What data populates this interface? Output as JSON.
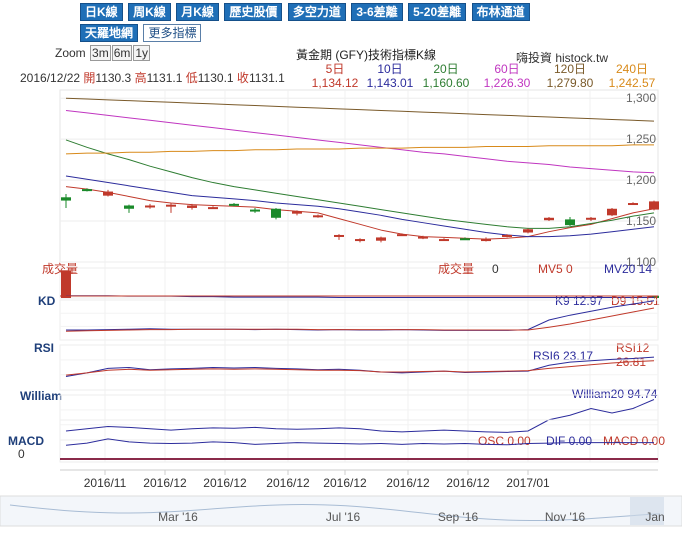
{
  "tabs": [
    "日K線",
    "周K線",
    "月K線",
    "歷史股價",
    "多空力道",
    "3-6差離",
    "5-20差離",
    "布林通道",
    "天羅地網",
    "更多指標"
  ],
  "zoom": {
    "label": "Zoom",
    "options": [
      "3m",
      "6m",
      "1y"
    ]
  },
  "title": "黃金期 (GFY)技術指標K線",
  "site": "嗨投資 histock.tw",
  "ohlc": {
    "date": "2016/12/22",
    "open_label": "開",
    "open": "1130.3",
    "high_label": "高",
    "high": "1131.1",
    "low_label": "低",
    "low": "1130.1",
    "close_label": "收",
    "close": "1131.1"
  },
  "ma": [
    {
      "name": "5日",
      "value": "1,134.12",
      "color": "#c0392b"
    },
    {
      "name": "10日",
      "value": "1,143.01",
      "color": "#2c2c9c"
    },
    {
      "name": "20日",
      "value": "1,160.60",
      "color": "#2e7d32"
    },
    {
      "name": "60日",
      "value": "1,226.30",
      "color": "#c036c0"
    },
    {
      "name": "120日",
      "value": "1,279.80",
      "color": "#7a5a2a"
    },
    {
      "name": "240日",
      "value": "1,242.57",
      "color": "#d88a1a"
    }
  ],
  "volume": {
    "label": "成交量",
    "label2": "成交量",
    "value": "0",
    "mv5_label": "MV5",
    "mv5": "0",
    "mv20_label": "MV20",
    "mv20": "14"
  },
  "kd": {
    "label": "KD",
    "k_label": "K9",
    "k": "12.97",
    "d_label": "D9",
    "d": "15.51"
  },
  "rsi": {
    "label": "RSI",
    "rsi6_label": "RSI6",
    "rsi6": "23.17",
    "rsi12_label": "RSI12",
    "rsi12": "26.81"
  },
  "william": {
    "label": "William",
    "w_label": "William20",
    "w": "94.74"
  },
  "macd": {
    "label": "MACD",
    "zero": "0",
    "osc_label": "OSC",
    "osc": "0.00",
    "dif_label": "DIF",
    "dif": "0.00",
    "macd_label": "MACD",
    "macd": "0.00"
  },
  "nav_labels": [
    "Mar '16",
    "Jul '16",
    "Sep '16",
    "Nov '16",
    "Jan"
  ],
  "colors": {
    "up": "#c0392b",
    "down": "#1a8a2a",
    "tab": "#1f6fb7"
  },
  "chart_data": {
    "type": "candlestick",
    "x_ticks": [
      "2016/11",
      "2016/12",
      "2016/12",
      "2016/12",
      "2016/12",
      "2016/12",
      "2016/12",
      "2017/01"
    ],
    "y_ticks": [
      1100,
      1150,
      1200,
      1250,
      1300
    ],
    "ylim": [
      1100,
      1310
    ],
    "candles": [
      {
        "o": 1179,
        "c": 1175,
        "h": 1183,
        "l": 1166
      },
      {
        "o": 1189,
        "c": 1187,
        "h": 1190,
        "l": 1186
      },
      {
        "o": 1181,
        "c": 1186,
        "h": 1188,
        "l": 1180
      },
      {
        "o": 1169,
        "c": 1165,
        "h": 1170,
        "l": 1160
      },
      {
        "o": 1167,
        "c": 1169,
        "h": 1171,
        "l": 1165
      },
      {
        "o": 1168,
        "c": 1170,
        "h": 1172,
        "l": 1160
      },
      {
        "o": 1166,
        "c": 1169,
        "h": 1171,
        "l": 1164
      },
      {
        "o": 1167,
        "c": 1167,
        "h": 1168,
        "l": 1165
      },
      {
        "o": 1171,
        "c": 1169,
        "h": 1172,
        "l": 1168
      },
      {
        "o": 1164,
        "c": 1162,
        "h": 1166,
        "l": 1160
      },
      {
        "o": 1165,
        "c": 1154,
        "h": 1166,
        "l": 1152
      },
      {
        "o": 1159,
        "c": 1162,
        "h": 1163,
        "l": 1157
      },
      {
        "o": 1155,
        "c": 1157,
        "h": 1158,
        "l": 1154
      },
      {
        "o": 1133,
        "c": 1133,
        "h": 1134,
        "l": 1127
      },
      {
        "o": 1126,
        "c": 1128,
        "h": 1129,
        "l": 1124
      },
      {
        "o": 1126,
        "c": 1130,
        "h": 1131,
        "l": 1124
      },
      {
        "o": 1133,
        "c": 1134,
        "h": 1135,
        "l": 1132
      },
      {
        "o": 1129,
        "c": 1131,
        "h": 1132,
        "l": 1128
      },
      {
        "o": 1128,
        "c": 1128,
        "h": 1129,
        "l": 1126
      },
      {
        "o": 1129,
        "c": 1128,
        "h": 1130,
        "l": 1127
      },
      {
        "o": 1126,
        "c": 1128,
        "h": 1130,
        "l": 1125
      },
      {
        "o": 1131,
        "c": 1133,
        "h": 1134,
        "l": 1130
      },
      {
        "o": 1136,
        "c": 1140,
        "h": 1141,
        "l": 1135
      },
      {
        "o": 1151,
        "c": 1154,
        "h": 1155,
        "l": 1150
      },
      {
        "o": 1152,
        "c": 1145,
        "h": 1155,
        "l": 1144
      },
      {
        "o": 1152,
        "c": 1154,
        "h": 1155,
        "l": 1150
      },
      {
        "o": 1157,
        "c": 1165,
        "h": 1166,
        "l": 1156
      },
      {
        "o": 1171,
        "c": 1172,
        "h": 1173,
        "l": 1170
      },
      {
        "o": 1164,
        "c": 1174,
        "h": 1175,
        "l": 1163
      }
    ],
    "series": [
      {
        "name": "5日",
        "color": "#c0392b",
        "values": [
          1192,
          1189,
          1185,
          1180,
          1175,
          1172,
          1170,
          1169,
          1168,
          1167,
          1164,
          1162,
          1160,
          1153,
          1146,
          1139,
          1134,
          1131,
          1130,
          1129,
          1128,
          1129,
          1131,
          1137,
          1142,
          1146,
          1153,
          1160,
          1165
        ]
      },
      {
        "name": "10日",
        "color": "#2c2c9c",
        "values": [
          1205,
          1201,
          1197,
          1193,
          1189,
          1185,
          1181,
          1179,
          1177,
          1175,
          1172,
          1170,
          1168,
          1165,
          1161,
          1157,
          1152,
          1148,
          1144,
          1140,
          1136,
          1133,
          1131,
          1131,
          1132,
          1134,
          1137,
          1140,
          1143
        ]
      },
      {
        "name": "20日",
        "color": "#2e7d32",
        "values": [
          1249,
          1240,
          1232,
          1225,
          1217,
          1210,
          1203,
          1197,
          1192,
          1188,
          1184,
          1180,
          1176,
          1172,
          1168,
          1164,
          1160,
          1156,
          1152,
          1149,
          1146,
          1143,
          1141,
          1141,
          1143,
          1147,
          1151,
          1156,
          1160
        ]
      },
      {
        "name": "60日",
        "color": "#c036c0",
        "values": [
          1285,
          1282,
          1279,
          1276,
          1273,
          1270,
          1267,
          1264,
          1261,
          1258,
          1255,
          1252,
          1249,
          1246,
          1243,
          1240,
          1237,
          1234,
          1232,
          1229,
          1226,
          1223,
          1221,
          1219,
          1216,
          1214,
          1212,
          1210,
          1209
        ]
      },
      {
        "name": "120日",
        "color": "#7a5a2a",
        "values": [
          1300,
          1299,
          1298,
          1297,
          1296,
          1295,
          1294,
          1293,
          1292,
          1291,
          1290,
          1289,
          1288,
          1287,
          1286,
          1285,
          1284,
          1283,
          1282,
          1281,
          1280,
          1279,
          1278,
          1277,
          1276,
          1275,
          1274,
          1273,
          1272
        ]
      },
      {
        "name": "240日",
        "color": "#d88a1a",
        "values": [
          1232,
          1233,
          1233,
          1234,
          1234,
          1235,
          1235,
          1236,
          1236,
          1237,
          1237,
          1238,
          1238,
          1238,
          1239,
          1239,
          1239,
          1240,
          1240,
          1240,
          1241,
          1241,
          1241,
          1242,
          1242,
          1242,
          1242,
          1243,
          1243
        ]
      }
    ],
    "volume": [
      120,
      0,
      0,
      0,
      0,
      0,
      0,
      0,
      0,
      0,
      0,
      0,
      0,
      0,
      0,
      0,
      0,
      0,
      0,
      0,
      0,
      0,
      0,
      0,
      0,
      0,
      0,
      0,
      10
    ],
    "mv20": [
      18,
      18,
      18,
      17,
      17,
      17,
      16,
      16,
      15,
      15,
      15,
      15,
      15,
      14,
      14,
      14,
      14,
      14,
      14,
      14,
      14,
      14,
      14,
      14,
      14,
      14,
      14,
      14,
      14
    ],
    "k": [
      25,
      25,
      26,
      27,
      28,
      27,
      27,
      27,
      27,
      26,
      27,
      26,
      25,
      26,
      25,
      25,
      26,
      25,
      24,
      24,
      24,
      24,
      26,
      50,
      62,
      72,
      82,
      90,
      98
    ],
    "d": [
      22,
      23,
      24,
      25,
      26,
      26,
      27,
      27,
      27,
      27,
      27,
      27,
      26,
      26,
      26,
      26,
      26,
      26,
      25,
      25,
      25,
      25,
      25,
      32,
      40,
      50,
      60,
      70,
      80
    ],
    "rsi6": [
      30,
      38,
      48,
      50,
      45,
      47,
      48,
      50,
      49,
      50,
      48,
      47,
      45,
      46,
      44,
      40,
      38,
      40,
      42,
      39,
      40,
      41,
      42,
      55,
      62,
      65,
      68,
      70,
      73
    ],
    "rsi12": [
      33,
      38,
      44,
      46,
      44,
      45,
      46,
      47,
      46,
      47,
      46,
      45,
      44,
      44,
      43,
      40,
      40,
      41,
      42,
      40,
      41,
      42,
      43,
      48,
      52,
      56,
      60,
      63,
      65
    ],
    "w20": [
      20,
      25,
      30,
      28,
      25,
      22,
      25,
      27,
      26,
      28,
      25,
      24,
      25,
      27,
      25,
      20,
      18,
      20,
      22,
      20,
      18,
      17,
      20,
      45,
      55,
      70,
      60,
      70,
      90
    ],
    "macd": [
      40,
      45,
      55,
      48,
      45,
      44,
      45,
      48,
      46,
      42,
      44,
      46,
      45,
      44,
      43,
      44,
      42,
      44,
      43,
      44,
      42,
      41,
      44,
      45,
      46,
      46,
      46,
      46,
      46
    ]
  }
}
